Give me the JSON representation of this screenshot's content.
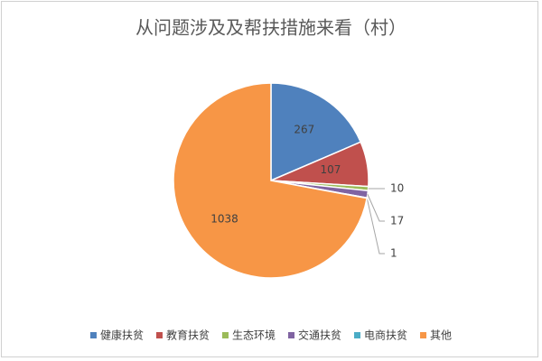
{
  "chart_data": {
    "type": "pie",
    "title": "从问题涉及及帮扶措施来看（村）",
    "categories": [
      "健康扶贫",
      "教育扶贫",
      "生态环境",
      "交通扶贫",
      "电商扶贫",
      "其他"
    ],
    "values": [
      267,
      107,
      10,
      17,
      1,
      1038
    ],
    "colors": [
      "#4f81bd",
      "#c0504d",
      "#9bbb59",
      "#8064a2",
      "#4bacc6",
      "#f79646"
    ],
    "legend": "bottom"
  }
}
